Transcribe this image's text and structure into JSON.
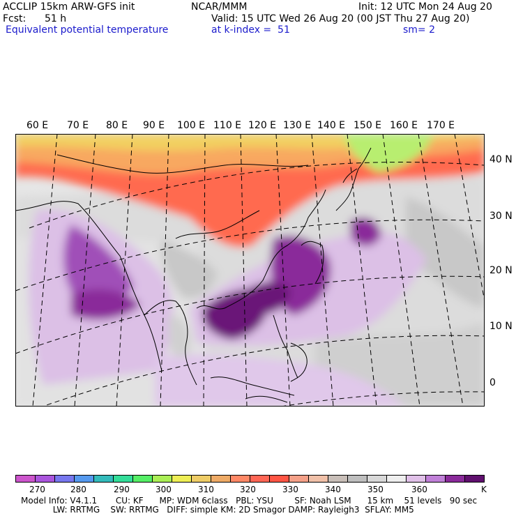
{
  "header": {
    "model": "ACCLIP 15km ARW-GFS init",
    "center": "NCAR/MMM",
    "init": "Init: 12 UTC Mon 24 Aug 20",
    "fcst_label": "Fcst:",
    "fcst_value": "51 h",
    "valid": "Valid: 15 UTC Wed 26 Aug 20 (00 JST Thu 27 Aug 20)",
    "field": "Equivalent potential temperature",
    "level": "at k-index =  51",
    "smoothing": "sm= 2"
  },
  "map": {
    "lon_labels": [
      "60 E",
      "70 E",
      "80 E",
      "90 E",
      "100 E",
      "110 E",
      "120 E",
      "130 E",
      "140 E",
      "150 E",
      "160 E",
      "170 E"
    ],
    "lat_labels": [
      "40 N",
      "30 N",
      "20 N",
      "10 N",
      "0"
    ]
  },
  "legend": {
    "colors": [
      "#cc55cc",
      "#aa55dd",
      "#7777ee",
      "#5599ee",
      "#33bbbb",
      "#33dd99",
      "#55ee66",
      "#aaee55",
      "#eeee55",
      "#eecc66",
      "#eeaa66",
      "#ff8866",
      "#ff6655",
      "#ff5544",
      "#f4a088",
      "#f0c0a8",
      "#c8beb8",
      "#bebebe",
      "#d8d8d8",
      "#eeeeee",
      "#e0c0e8",
      "#c080d8",
      "#8a2a9a",
      "#60106e"
    ],
    "ticks": [
      "270",
      "280",
      "290",
      "300",
      "310",
      "320",
      "330",
      "340",
      "350",
      "360"
    ],
    "unit": "K"
  },
  "footer": {
    "line1": "Model Info: V4.1.1       CU: KF      MP: WDM 6class   PBL: YSU        SF: Noah LSM      15 km    51 levels   90 sec",
    "line2": "            LW: RRTMG    SW: RRTMG   DIFF: simple KM: 2D Smagor DAMP: Rayleigh3  SFLAY: MM5"
  }
}
